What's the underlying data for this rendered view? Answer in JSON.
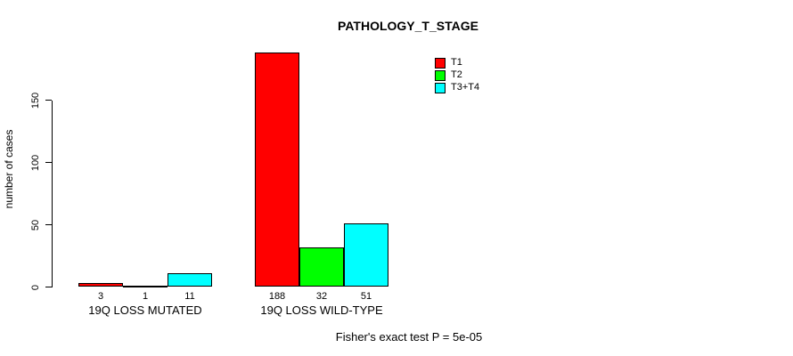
{
  "chart_data": {
    "type": "bar",
    "title": "PATHOLOGY_T_STAGE",
    "ylabel": "number of cases",
    "xlabel": "",
    "ylim": [
      0,
      150
    ],
    "yticks": [
      0,
      50,
      100,
      150
    ],
    "grid": false,
    "legend_position": "top-right",
    "categories": [
      "19Q LOSS MUTATED",
      "19Q LOSS WILD-TYPE"
    ],
    "series": [
      {
        "name": "T1",
        "color": "#ff0000",
        "values": [
          3,
          188
        ]
      },
      {
        "name": "T2",
        "color": "#00ff00",
        "values": [
          1,
          32
        ]
      },
      {
        "name": "T3+T4",
        "color": "#00ffff",
        "values": [
          11,
          51
        ]
      }
    ],
    "bar_value_labels": [
      [
        "3",
        "1",
        "11"
      ],
      [
        "188",
        "32",
        "51"
      ]
    ],
    "annotation": "Fisher's exact test P = 5e-05"
  }
}
